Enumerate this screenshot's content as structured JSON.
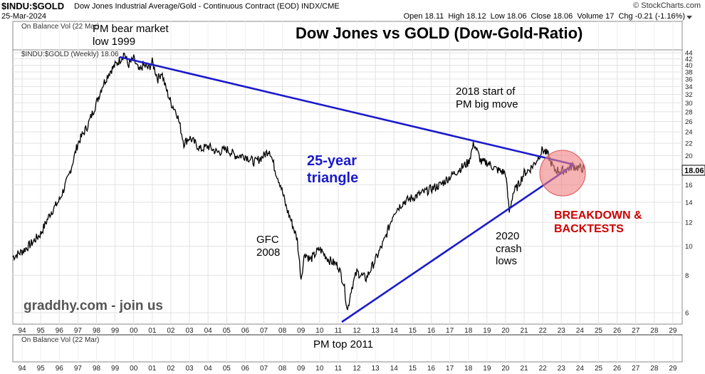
{
  "header": {
    "symbol": "$INDU:$GOLD",
    "description": "Dow Jones Industrial Average/Gold - Continuous Contract (EOD) INDX/CME",
    "brand": "© StockCharts.com",
    "date": "25-Mar-2024",
    "ohlc": "Open 18.11  High 18.12  Low 18.06  Close 18.06  Volume 17  Chg -0.21 (-1.16%)"
  },
  "panels": {
    "top_label": "On Balance Vol (22 Mar)",
    "main_label": "$INDU:$GOLD (Weekly) 18.06",
    "bottom_label": "On Balance Vol (22 Mar)",
    "last_value_tag": "18.06"
  },
  "annotations": {
    "title": "Dow Jones vs GOLD (Dow-Gold-Ratio)",
    "pm_bear": "PM bear market low 1999",
    "start_2018": "2018 start of PM big move",
    "triangle": "25-year triangle",
    "gfc": "GFC 2008",
    "crash_2020": "2020 crash lows",
    "breakdown": "BREAKDOWN & BACKTESTS",
    "watermark": "graddhy.com - join us",
    "pm_top": "PM top 2011"
  },
  "colors": {
    "trendline": "#1a1acc",
    "triangle_text": "#1a1acc",
    "breakdown_text": "#cc0000",
    "circle_fill": "#f08080",
    "price_line": "#000000"
  },
  "chart_data": {
    "type": "line",
    "scale": "log",
    "x_ticks": [
      "94",
      "95",
      "96",
      "97",
      "98",
      "99",
      "00",
      "01",
      "02",
      "03",
      "04",
      "05",
      "06",
      "07",
      "08",
      "09",
      "10",
      "11",
      "12",
      "13",
      "14",
      "15",
      "16",
      "17",
      "18",
      "19",
      "20",
      "21",
      "22",
      "23",
      "24",
      "25",
      "26",
      "27",
      "28",
      "29"
    ],
    "y_ticks": [
      6,
      8,
      10,
      12,
      14,
      16,
      18,
      20,
      22,
      24,
      26,
      28,
      30,
      32,
      34,
      36,
      38,
      40,
      42,
      44
    ],
    "ylim": [
      5.5,
      45
    ],
    "xlim": [
      1993.5,
      2029.5
    ],
    "series": [
      {
        "x": [
          1993.5,
          1994,
          1994.5,
          1995,
          1995.5,
          1996,
          1996.5,
          1997,
          1997.5,
          1998,
          1998.3,
          1998.7,
          1999,
          1999.3,
          1999.5,
          1999.7,
          2000,
          2000.3,
          2000.5,
          2000.8,
          2001,
          2001.3,
          2001.5,
          2001.7,
          2002,
          2002.3,
          2002.5,
          2002.7,
          2003,
          2003.3,
          2003.6,
          2004,
          2004.5,
          2005,
          2005.5,
          2006,
          2006.5,
          2007,
          2007.3,
          2007.6,
          2007.9,
          2008.2,
          2008.5,
          2008.8,
          2009,
          2009.2,
          2009.5,
          2010,
          2010.5,
          2011,
          2011.3,
          2011.5,
          2011.7,
          2012,
          2012.5,
          2013,
          2013.5,
          2014,
          2014.5,
          2015,
          2015.5,
          2016,
          2016.5,
          2017,
          2017.5,
          2018,
          2018.3,
          2018.7,
          2019,
          2019.5,
          2020,
          2020.2,
          2020.4,
          2020.7,
          2021,
          2021.3,
          2021.6,
          2022,
          2022.3,
          2022.6,
          2023,
          2023.3,
          2023.6,
          2024,
          2024.25
        ],
        "y": [
          9.2,
          9.6,
          10.2,
          11,
          12.8,
          14.2,
          17,
          22,
          25,
          30,
          34,
          38,
          40,
          42,
          44,
          40,
          42,
          38,
          40,
          39,
          41,
          36,
          38,
          34,
          30,
          28,
          25,
          22,
          23,
          22,
          21,
          21.5,
          20.5,
          21,
          20,
          20,
          19,
          20,
          21,
          18,
          16,
          13.5,
          12,
          10.5,
          7.8,
          9.5,
          9,
          9.8,
          9,
          8.6,
          7.5,
          6.1,
          7.2,
          8.2,
          7.8,
          9,
          10.5,
          13,
          14,
          14.5,
          15,
          15.5,
          16,
          17,
          18,
          19,
          22,
          19,
          19,
          18,
          17.5,
          13,
          15,
          16,
          17.5,
          18,
          19,
          21,
          20,
          18,
          17.8,
          18,
          18.5,
          18.2,
          18.06
        ]
      }
    ]
  }
}
